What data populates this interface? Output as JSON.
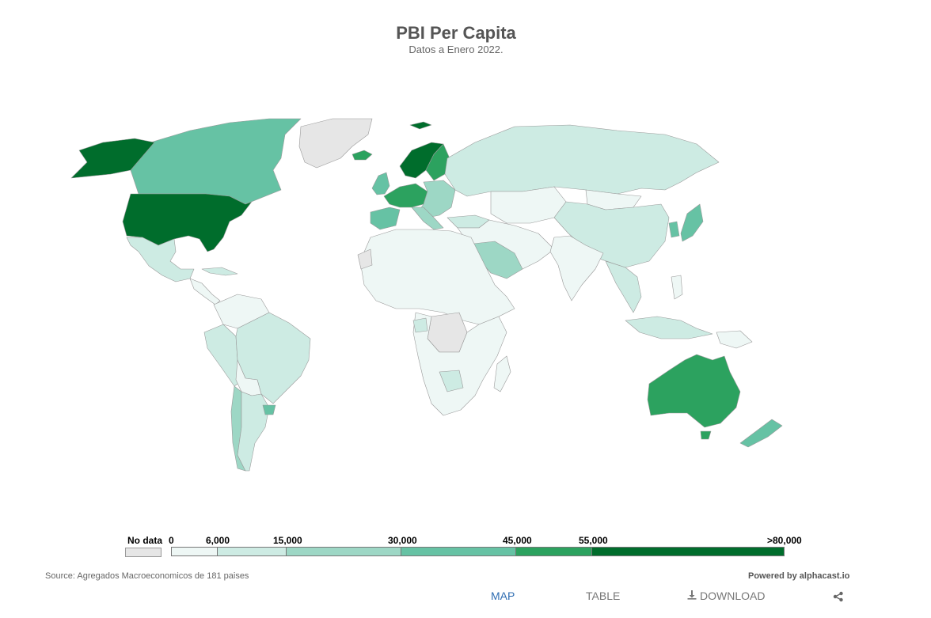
{
  "header": {
    "title": "PBI Per Capita",
    "subtitle": "Datos a Enero 2022."
  },
  "colors": {
    "no_data": "#e6e6e6",
    "bin_0_6000": "#eef7f5",
    "bin_6000_15000": "#cdebe3",
    "bin_15000_30000": "#9dd7c5",
    "bin_30000_45000": "#66c2a4",
    "bin_45000_55000": "#2ca25f",
    "bin_55000_80000": "#006d2c",
    "border": "#9a9a9a"
  },
  "legend": {
    "no_data_label": "No data",
    "ticks": [
      "0",
      "6,000",
      "15,000",
      "30,000",
      "45,000",
      "55,000",
      ">80,000"
    ]
  },
  "footer": {
    "source": "Source: Agregados Macroeconomicos de 181 paises",
    "powered": "Powered by alphacast.io"
  },
  "tabs": {
    "map": "MAP",
    "table": "TABLE",
    "download": "DOWNLOAD"
  },
  "icons": {
    "download": "download-icon",
    "share": "share-icon"
  }
}
